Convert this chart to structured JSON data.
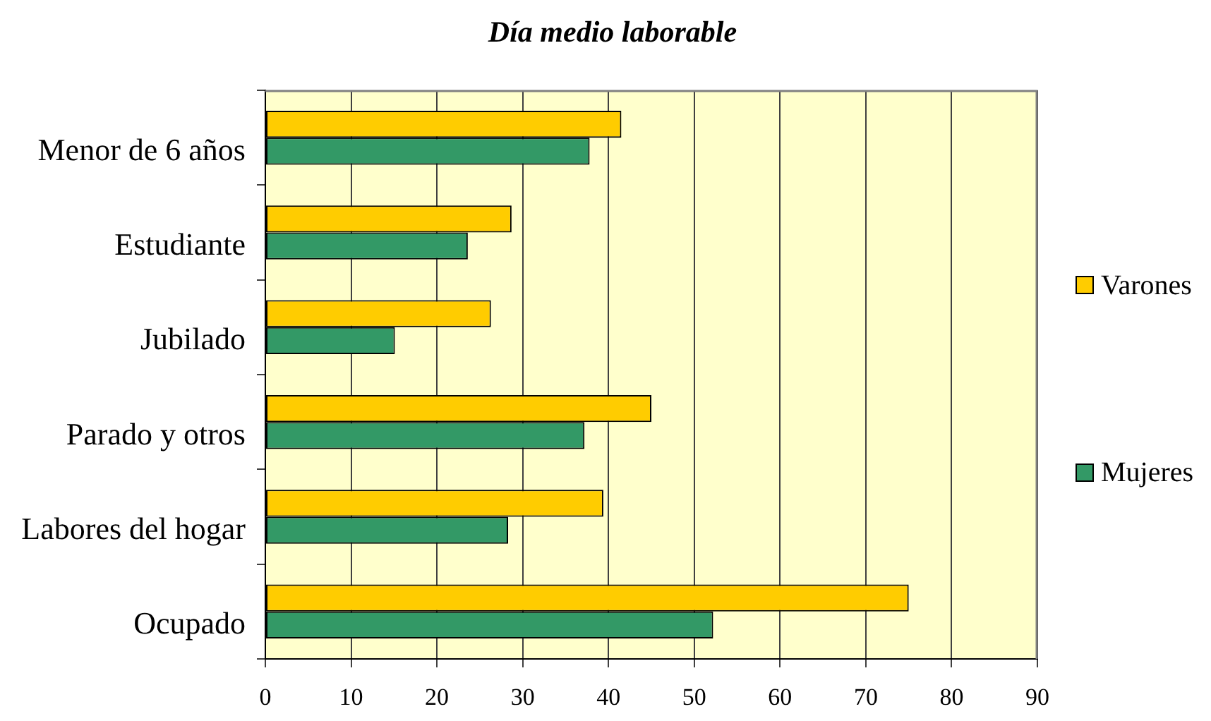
{
  "chart_data": {
    "type": "bar",
    "orientation": "horizontal",
    "title": "Día medio laborable",
    "categories": [
      "Menor de 6 años",
      "Estudiante",
      "Jubilado",
      "Parado y otros",
      "Labores del hogar",
      "Ocupado"
    ],
    "series": [
      {
        "name": "Varones",
        "color": "#ffcc00",
        "values": [
          41.5,
          28.7,
          26.3,
          45.0,
          39.4,
          75.0
        ]
      },
      {
        "name": "Mujeres",
        "color": "#339966",
        "values": [
          37.8,
          23.6,
          15.1,
          37.2,
          28.3,
          52.2
        ]
      }
    ],
    "xlim": [
      0,
      90
    ],
    "xticks": [
      0,
      10,
      20,
      30,
      40,
      50,
      60,
      70,
      80,
      90
    ],
    "grid": "x",
    "legend": "right"
  }
}
